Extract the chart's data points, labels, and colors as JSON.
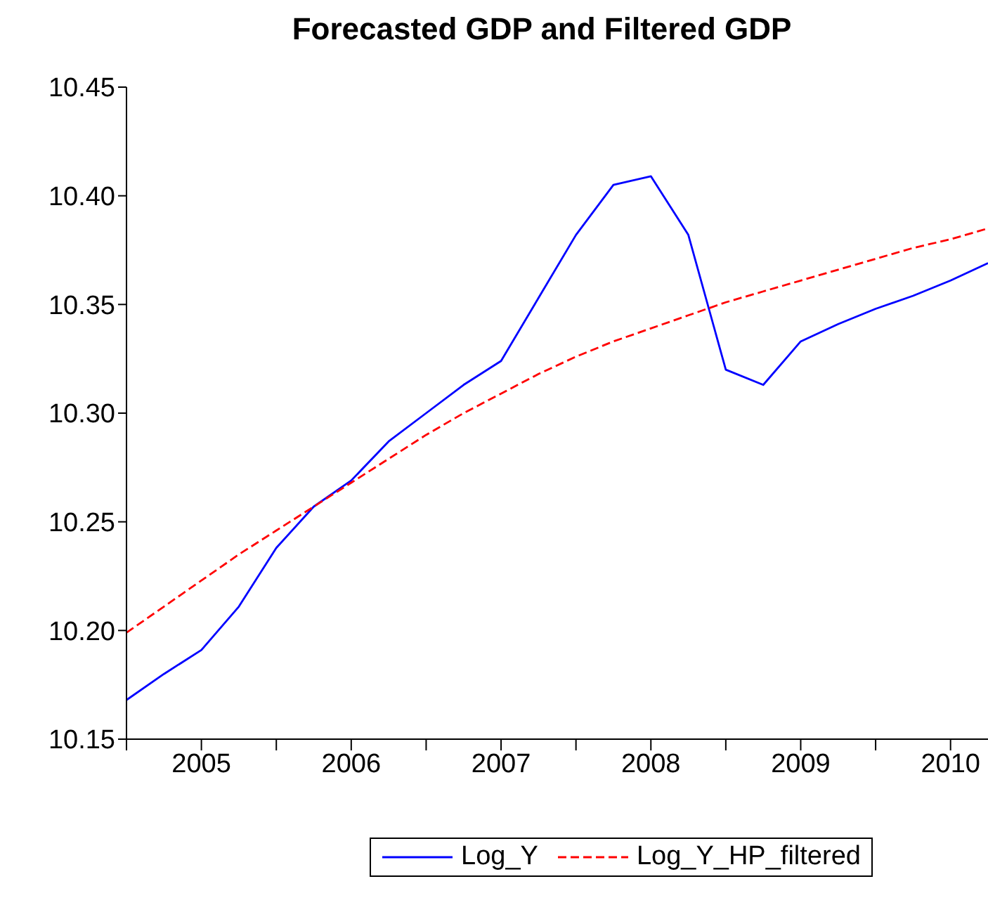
{
  "chart_data": {
    "type": "line",
    "title": "Forecasted GDP and Filtered GDP",
    "x": [
      2005,
      2005.25,
      2005.5,
      2005.75,
      2006,
      2006.25,
      2006.5,
      2006.75,
      2007,
      2007.25,
      2007.5,
      2007.75,
      2008,
      2008.25,
      2008.5,
      2008.75,
      2009,
      2009.25,
      2009.5,
      2009.75,
      2010,
      2010.25,
      2010.5,
      2010.75
    ],
    "series": [
      {
        "name": "Log_Y",
        "color": "#0000ff",
        "line_style": "solid",
        "values": [
          10.168,
          10.18,
          10.191,
          10.211,
          10.238,
          10.257,
          10.269,
          10.287,
          10.3,
          10.313,
          10.324,
          10.353,
          10.382,
          10.405,
          10.409,
          10.382,
          10.32,
          10.313,
          10.333,
          10.341,
          10.348,
          10.354,
          10.361,
          10.369
        ]
      },
      {
        "name": "Log_Y_HP_filtered",
        "color": "#ff0000",
        "line_style": "dashed",
        "values": [
          10.199,
          10.211,
          10.223,
          10.235,
          10.246,
          10.257,
          10.268,
          10.279,
          10.29,
          10.3,
          10.309,
          10.318,
          10.326,
          10.333,
          10.339,
          10.345,
          10.351,
          10.356,
          10.361,
          10.366,
          10.371,
          10.376,
          10.38,
          10.385
        ]
      }
    ],
    "xlim": [
      2005,
      2010.75
    ],
    "xticks": [
      {
        "value": 2005,
        "label": null
      },
      {
        "value": 2005.5,
        "label": "2005"
      },
      {
        "value": 2006,
        "label": null
      },
      {
        "value": 2006.5,
        "label": "2006"
      },
      {
        "value": 2007,
        "label": null
      },
      {
        "value": 2007.5,
        "label": "2007"
      },
      {
        "value": 2008,
        "label": null
      },
      {
        "value": 2008.5,
        "label": "2008"
      },
      {
        "value": 2009,
        "label": null
      },
      {
        "value": 2009.5,
        "label": "2009"
      },
      {
        "value": 2010,
        "label": null
      },
      {
        "value": 2010.5,
        "label": "2010"
      }
    ],
    "ylim": [
      10.15,
      10.45
    ],
    "yticks": [
      10.15,
      {
        "value": 10.2,
        "label": "10.20"
      },
      10.25,
      {
        "value": 10.3,
        "label": "10.30"
      },
      10.35,
      {
        "value": 10.4,
        "label": "10.40"
      },
      10.45
    ],
    "grid": false,
    "legend": "bottom",
    "marker": "none"
  }
}
